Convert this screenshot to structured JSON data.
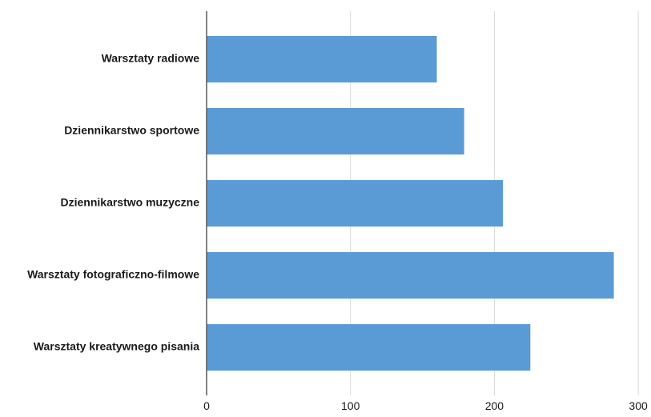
{
  "chart_data": {
    "type": "bar",
    "orientation": "horizontal",
    "categories": [
      "Warsztaty radiowe",
      "Dziennikarstwo sportowe",
      "Dziennikarstwo muzyczne",
      "Warsztaty fotograficzno-filmowe",
      "Warsztaty kreatywnego pisania"
    ],
    "values": [
      160,
      179,
      206,
      283,
      225
    ],
    "xlim": [
      0,
      300
    ],
    "x_ticks": [
      0,
      100,
      200,
      300
    ],
    "grid": "vertical",
    "title": "",
    "xlabel": "",
    "ylabel": "",
    "bar_color": "#5B9BD5",
    "grid_color": "#d9d9d9",
    "axis_color": "#595959"
  }
}
